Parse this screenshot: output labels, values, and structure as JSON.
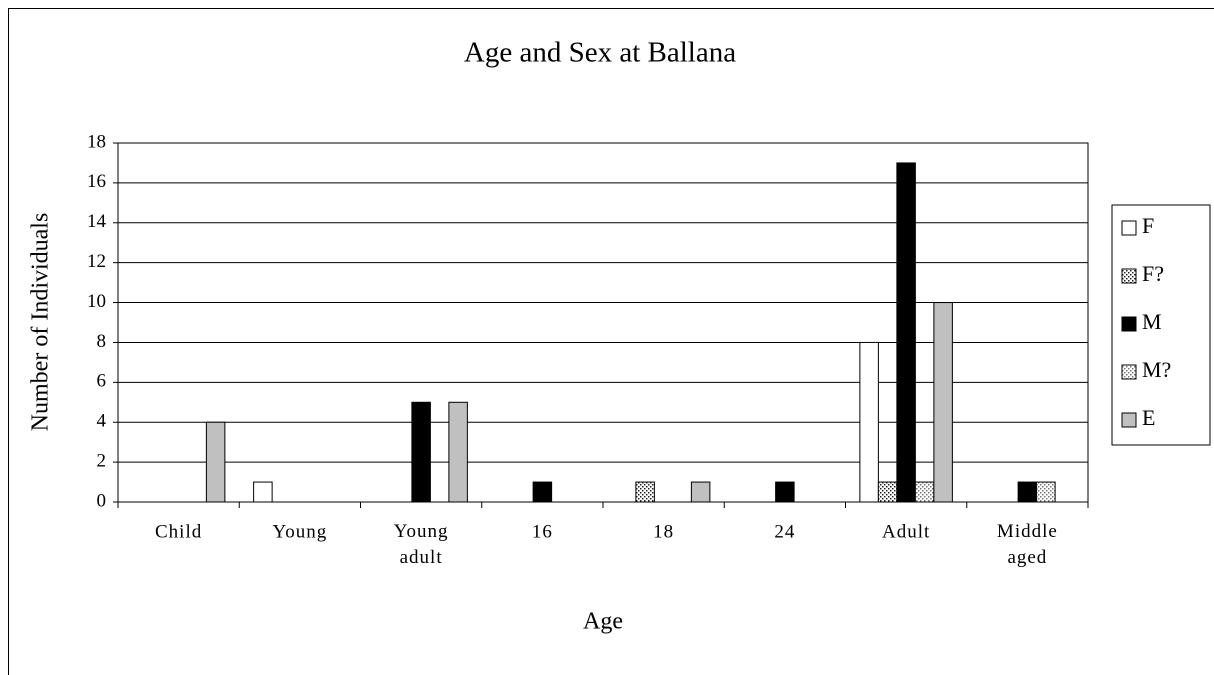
{
  "chart_data": {
    "type": "bar",
    "title": "Age and Sex at Ballana",
    "x_label": "Age",
    "y_label": "Number of Individuals",
    "categories": [
      "Child",
      "Young",
      "Young adult",
      "16",
      "18",
      "24",
      "Adult",
      "Middle aged"
    ],
    "series": [
      {
        "name": "F",
        "color": "#ffffff",
        "values": [
          0,
          1,
          0,
          0,
          0,
          0,
          8,
          0
        ]
      },
      {
        "name": "F?",
        "color": "#222222",
        "pattern": "dots",
        "values": [
          0,
          0,
          0,
          0,
          1,
          0,
          1,
          0
        ]
      },
      {
        "name": "M",
        "color": "#000000",
        "values": [
          0,
          0,
          5,
          1,
          0,
          1,
          17,
          1
        ]
      },
      {
        "name": "M?",
        "color": "#777777",
        "pattern": "dots",
        "values": [
          0,
          0,
          0,
          0,
          0,
          0,
          1,
          1
        ]
      },
      {
        "name": "E",
        "color": "#c0c0c0",
        "values": [
          4,
          0,
          5,
          0,
          1,
          0,
          10,
          0
        ]
      }
    ],
    "ylim": [
      0,
      18
    ],
    "yticks": [
      0,
      2,
      4,
      6,
      8,
      10,
      12,
      14,
      16,
      18
    ],
    "grid": true,
    "legend": "right"
  }
}
